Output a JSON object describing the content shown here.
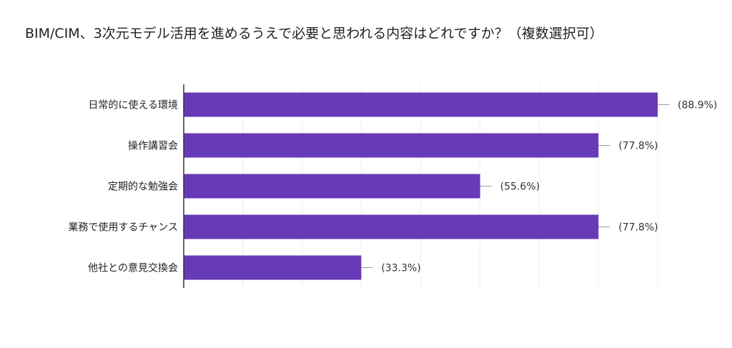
{
  "chart_data": {
    "type": "bar",
    "orientation": "horizontal",
    "title": "BIM/CIM、3次元モデル活用を進めるうえで必要と思われる内容はどれですか？（複数選択可）",
    "categories": [
      "日常的に使える環境",
      "操作講習会",
      "定期的な勉強会",
      "業務で使用するチャンス",
      "他社との意見交換会"
    ],
    "values": [
      88.9,
      77.8,
      55.6,
      77.8,
      33.3
    ],
    "data_labels": [
      "(88.9%)",
      "(77.8%)",
      "(55.6%)",
      "(77.8%)",
      "(33.3%)"
    ],
    "xlim": [
      0,
      88.9
    ],
    "grid": true,
    "bar_color": "#673ab7"
  }
}
